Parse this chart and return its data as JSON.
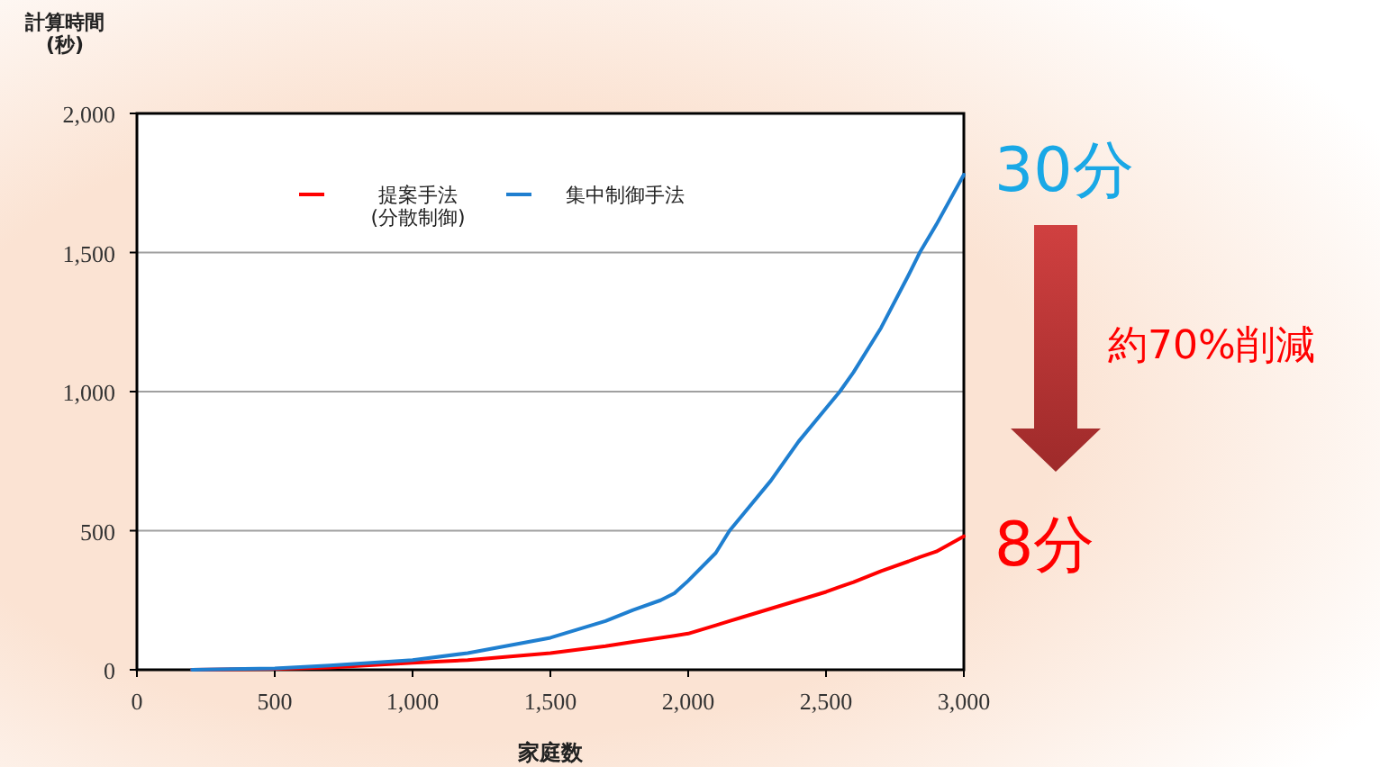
{
  "chart_data": {
    "type": "line",
    "xlabel": "家庭数",
    "ylabel": "計算時間\n(秒)",
    "x": [
      200,
      500,
      700,
      1000,
      1200,
      1500,
      1700,
      1800,
      1900,
      1950,
      2000,
      2100,
      2150,
      2200,
      2300,
      2400,
      2500,
      2550,
      2600,
      2700,
      2800,
      2840,
      2900,
      3000
    ],
    "series": [
      {
        "name": "提案手法\n(分散制御)",
        "color": "#ff0000",
        "values": [
          0,
          3,
          8,
          25,
          35,
          60,
          85,
          100,
          115,
          122,
          130,
          160,
          175,
          190,
          220,
          250,
          280,
          298,
          315,
          355,
          390,
          405,
          425,
          480
        ]
      },
      {
        "name": "集中制御手法",
        "color": "#1f7fd0",
        "values": [
          0,
          5,
          15,
          35,
          60,
          115,
          175,
          215,
          250,
          275,
          320,
          420,
          500,
          560,
          680,
          820,
          940,
          1000,
          1070,
          1230,
          1420,
          1500,
          1600,
          1780
        ]
      }
    ],
    "xlim": [
      0,
      3000
    ],
    "xticks": [
      0,
      {
        "value": 500,
        "label": "500"
      },
      {
        "value": 1000,
        "label": "1,000"
      },
      {
        "value": 1500,
        "label": "1,500"
      },
      {
        "value": 2000,
        "label": "2,000"
      },
      {
        "value": 2500,
        "label": "2,500"
      },
      {
        "value": 3000,
        "label": "3,000"
      }
    ],
    "ylim": [
      0,
      2000
    ],
    "yticks": [
      0,
      500,
      {
        "value": 1000,
        "label": "1,000"
      },
      {
        "value": 1500,
        "label": "1,500"
      },
      {
        "value": 2000,
        "label": "2,000"
      }
    ],
    "grid": "y",
    "legend": "top",
    "marker": "none",
    "line_style": "solid",
    "annotations": [
      "30分",
      "約70%削減",
      "8分"
    ]
  }
}
